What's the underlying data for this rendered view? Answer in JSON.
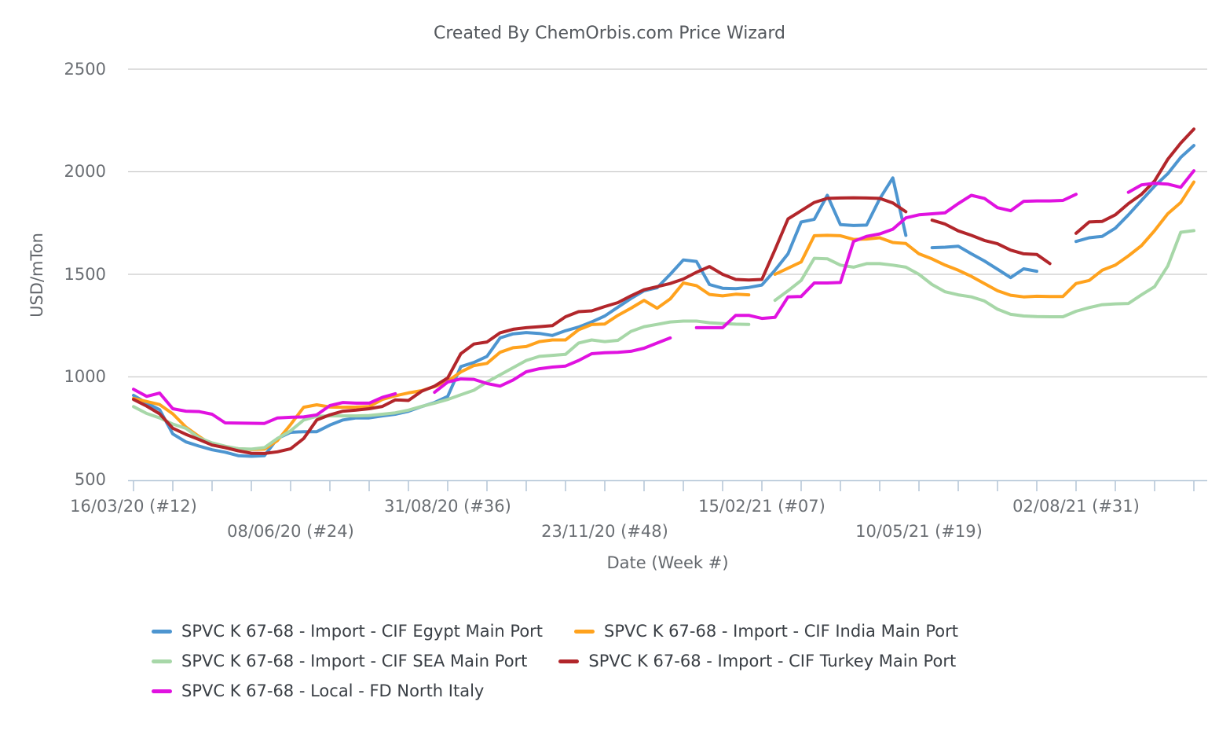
{
  "colors": {
    "grid": "#cbcbcb",
    "axis_line": "#b7c8d8",
    "tick_text": "#6b6f74",
    "title_text": "#54585d",
    "legend_text": "#3a3f45",
    "background": "#ffffff"
  },
  "chart_data": {
    "type": "line",
    "title": "Created By ChemOrbis.com Price Wizard",
    "xlabel": "Date (Week #)",
    "ylabel": "USD/mTon",
    "ylim": [
      500,
      2500
    ],
    "yticks": [
      500,
      1000,
      1500,
      2000,
      2500
    ],
    "grid": true,
    "legend_position": "bottom",
    "weeks_total": 82,
    "minor_tick_every_weeks": 3,
    "x_ticks": [
      {
        "label": "16/03/20 (#12)",
        "week": 0,
        "row": 1
      },
      {
        "label": "08/06/20 (#24)",
        "week": 12,
        "row": 2
      },
      {
        "label": "31/08/20 (#36)",
        "week": 24,
        "row": 1
      },
      {
        "label": "23/11/20 (#48)",
        "week": 36,
        "row": 2
      },
      {
        "label": "15/02/21 (#07)",
        "week": 48,
        "row": 1
      },
      {
        "label": "10/05/21 (#19)",
        "week": 60,
        "row": 2
      },
      {
        "label": "02/08/21 (#31)",
        "week": 72,
        "row": 1
      }
    ],
    "legend_rows": [
      [
        0,
        1
      ],
      [
        2,
        3
      ],
      [
        4
      ]
    ],
    "series": [
      {
        "name": "SPVC K 67-68 - Import - CIF Egypt Main Port",
        "color": "#4d95d0",
        "values": [
          910,
          872,
          840,
          722,
          683,
          663,
          645,
          633,
          616,
          613,
          616,
          700,
          730,
          733,
          733,
          765,
          790,
          800,
          800,
          810,
          818,
          832,
          855,
          875,
          905,
          1050,
          1070,
          1100,
          1190,
          1210,
          1216,
          1212,
          1202,
          1225,
          1243,
          1268,
          1297,
          1340,
          1382,
          1420,
          1435,
          1500,
          1570,
          1563,
          1450,
          1432,
          1430,
          1436,
          1448,
          1520,
          1600,
          1755,
          1768,
          1885,
          1742,
          1738,
          1740,
          1868,
          1970,
          1690,
          null,
          1630,
          1632,
          1637,
          1600,
          1565,
          1525,
          1484,
          1527,
          1515,
          null,
          null,
          1660,
          1678,
          1685,
          1725,
          1790,
          1860,
          1930,
          1990,
          2070,
          2128
        ]
      },
      {
        "name": "SPVC K 67-68 - Import - CIF India Main Port",
        "color": "#ffa21d",
        "values": [
          895,
          880,
          865,
          820,
          755,
          710,
          668,
          658,
          650,
          646,
          648,
          690,
          768,
          852,
          864,
          853,
          852,
          853,
          855,
          890,
          908,
          922,
          933,
          953,
          979,
          1024,
          1055,
          1066,
          1120,
          1142,
          1148,
          1172,
          1180,
          1180,
          1230,
          1255,
          1258,
          1300,
          1335,
          1373,
          1335,
          1380,
          1458,
          1445,
          1402,
          1395,
          1403,
          1400,
          null,
          1500,
          1530,
          1560,
          1688,
          1690,
          1688,
          1670,
          1672,
          1678,
          1655,
          1650,
          1600,
          1575,
          1545,
          1520,
          1490,
          1455,
          1420,
          1398,
          1390,
          1393,
          1392,
          1392,
          1455,
          1470,
          1520,
          1545,
          1590,
          1640,
          1713,
          1795,
          1850,
          1950
        ]
      },
      {
        "name": "SPVC K 67-68 - Import - CIF SEA Main Port",
        "color": "#a7d7a8",
        "values": [
          855,
          822,
          800,
          770,
          749,
          703,
          678,
          662,
          650,
          648,
          655,
          700,
          737,
          790,
          808,
          810,
          810,
          810,
          812,
          818,
          825,
          838,
          856,
          872,
          890,
          913,
          935,
          975,
          1010,
          1045,
          1080,
          1100,
          1105,
          1110,
          1165,
          1180,
          1172,
          1178,
          1222,
          1245,
          1256,
          1268,
          1272,
          1272,
          1264,
          1260,
          1257,
          1256,
          null,
          1373,
          1420,
          1470,
          1578,
          1576,
          1545,
          1535,
          1552,
          1552,
          1545,
          1535,
          1500,
          1450,
          1415,
          1400,
          1390,
          1370,
          1330,
          1305,
          1297,
          1294,
          1293,
          1293,
          1320,
          1338,
          1352,
          1356,
          1358,
          1400,
          1440,
          1540,
          1705,
          1713
        ]
      },
      {
        "name": "SPVC K 67-68 - Import - CIF Turkey Main Port",
        "color": "#b2262b",
        "values": [
          890,
          858,
          820,
          750,
          720,
          695,
          668,
          655,
          640,
          628,
          627,
          635,
          650,
          700,
          790,
          815,
          833,
          838,
          845,
          856,
          888,
          885,
          930,
          955,
          995,
          1113,
          1160,
          1170,
          1215,
          1232,
          1240,
          1245,
          1250,
          1293,
          1318,
          1322,
          1343,
          1362,
          1395,
          1425,
          1440,
          1455,
          1477,
          1510,
          1538,
          1500,
          1475,
          1472,
          1475,
          1620,
          1770,
          1810,
          1850,
          1870,
          1872,
          1873,
          1872,
          1870,
          1848,
          1805,
          null,
          1764,
          1745,
          1712,
          1690,
          1665,
          1649,
          1618,
          1600,
          1597,
          1552,
          null,
          1700,
          1755,
          1758,
          1790,
          1845,
          1890,
          1955,
          2060,
          2140,
          2208
        ]
      },
      {
        "name": "SPVC K 67-68 - Local - FD North Italy",
        "color": "#e012e0",
        "values": [
          940,
          905,
          921,
          845,
          833,
          831,
          818,
          776,
          775,
          774,
          773,
          800,
          803,
          805,
          815,
          860,
          875,
          872,
          872,
          900,
          918,
          null,
          null,
          925,
          975,
          990,
          988,
          968,
          955,
          985,
          1025,
          1040,
          1048,
          1053,
          1080,
          1113,
          1118,
          1120,
          1125,
          1140,
          1165,
          1190,
          null,
          1240,
          1240,
          1240,
          1300,
          1300,
          1285,
          1290,
          1390,
          1392,
          1458,
          1458,
          1460,
          1660,
          1685,
          1697,
          1720,
          1775,
          1790,
          1795,
          1800,
          1845,
          1885,
          1870,
          1825,
          1810,
          1856,
          1858,
          1858,
          1860,
          1890,
          null,
          null,
          null,
          1900,
          1936,
          1944,
          1940,
          1924,
          2005
        ]
      }
    ]
  }
}
